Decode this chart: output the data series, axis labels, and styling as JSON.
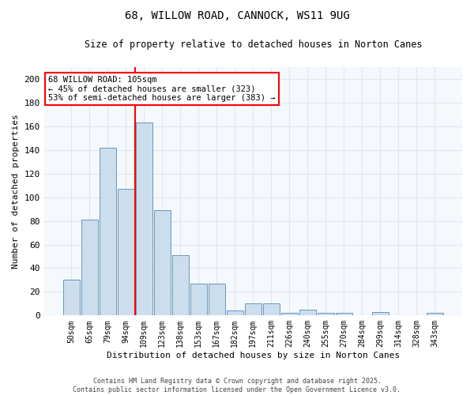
{
  "title1": "68, WILLOW ROAD, CANNOCK, WS11 9UG",
  "title2": "Size of property relative to detached houses in Norton Canes",
  "xlabel": "Distribution of detached houses by size in Norton Canes",
  "ylabel": "Number of detached properties",
  "categories": [
    "50sqm",
    "65sqm",
    "79sqm",
    "94sqm",
    "109sqm",
    "123sqm",
    "138sqm",
    "153sqm",
    "167sqm",
    "182sqm",
    "197sqm",
    "211sqm",
    "226sqm",
    "240sqm",
    "255sqm",
    "270sqm",
    "284sqm",
    "299sqm",
    "314sqm",
    "328sqm",
    "343sqm"
  ],
  "values": [
    30,
    81,
    142,
    107,
    163,
    89,
    51,
    27,
    27,
    4,
    10,
    10,
    2,
    5,
    2,
    2,
    0,
    3,
    0,
    0,
    2
  ],
  "bar_color": "#ccdded",
  "bar_edge_color": "#6699bb",
  "vline_color": "red",
  "vline_index": 4,
  "annotation_text": "68 WILLOW ROAD: 105sqm\n← 45% of detached houses are smaller (323)\n53% of semi-detached houses are larger (383) →",
  "annotation_fontsize": 7.5,
  "annotation_box_color": "white",
  "annotation_box_edge": "red",
  "ylim": [
    0,
    210
  ],
  "yticks": [
    0,
    20,
    40,
    60,
    80,
    100,
    120,
    140,
    160,
    180,
    200
  ],
  "footer_line1": "Contains HM Land Registry data © Crown copyright and database right 2025.",
  "footer_line2": "Contains public sector information licensed under the Open Government Licence v3.0.",
  "bg_color": "#ffffff",
  "plot_bg_color": "#f5f8fc",
  "grid_color": "#dde8f0",
  "title1_fontsize": 10,
  "title2_fontsize": 8.5,
  "xlabel_fontsize": 8,
  "ylabel_fontsize": 8
}
